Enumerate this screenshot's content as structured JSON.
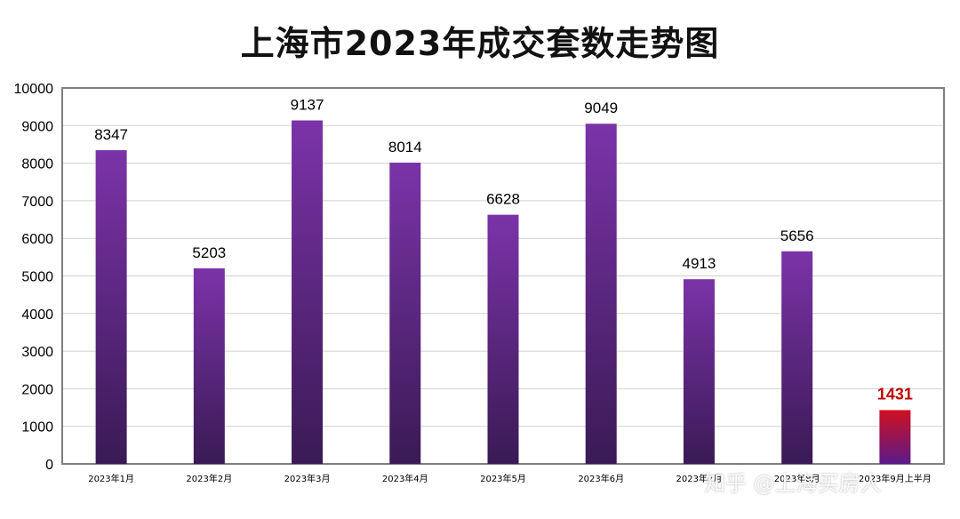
{
  "chart_data": {
    "type": "bar",
    "title": "上海市2023年成交套数走势图",
    "categories": [
      "2023年1月",
      "2023年2月",
      "2023年3月",
      "2023年4月",
      "2023年5月",
      "2023年6月",
      "2023年7月",
      "2023年8月",
      "2023年9月上半月"
    ],
    "values": [
      8347,
      5203,
      9137,
      8014,
      6628,
      9049,
      4913,
      5656,
      1431
    ],
    "highlight_index": 8,
    "ylim": [
      0,
      10000
    ],
    "yticks": [
      0,
      1000,
      2000,
      3000,
      4000,
      5000,
      6000,
      7000,
      8000,
      9000,
      10000
    ],
    "grid": true,
    "legend": "none",
    "colors": {
      "bar_top": "#7b33a8",
      "bar_bottom": "#3a1a55",
      "highlight_top": "#d01020",
      "highlight_bottom": "#5a1a8a",
      "highlight_label": "#c00000"
    }
  },
  "watermark": "知乎 @上海买房人"
}
